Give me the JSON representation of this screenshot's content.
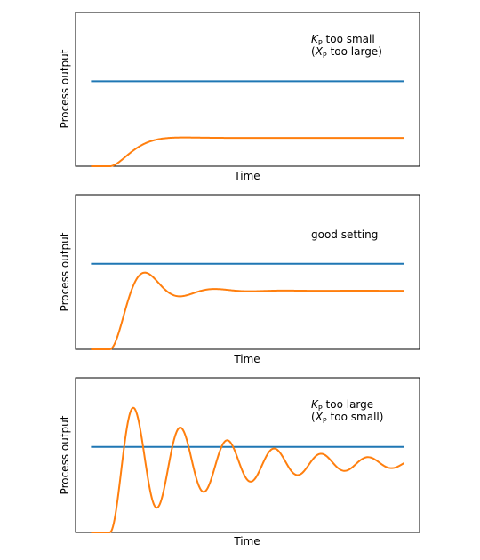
{
  "chart_data": [
    {
      "type": "line",
      "xlabel": "Time",
      "ylabel": "Process output",
      "annotation": {
        "k_line": "too small",
        "x_line": "too large)",
        "k_symbol": "K",
        "x_symbol": "X",
        "subscript": "P",
        "open_paren": "("
      },
      "xlim": [
        0,
        1
      ],
      "ylim": [
        0,
        1.9
      ],
      "setpoint": 1.05,
      "response": {
        "final": 0.35,
        "zeta": 0.8,
        "omega": 22,
        "delay": 0.06
      }
    },
    {
      "type": "line",
      "xlabel": "Time",
      "ylabel": "Process output",
      "annotation": {
        "text": "good setting"
      },
      "xlim": [
        0,
        1
      ],
      "ylim": [
        0,
        1.9
      ],
      "setpoint": 1.05,
      "response": {
        "final": 0.72,
        "zeta": 0.35,
        "omega": 30,
        "delay": 0.06
      }
    },
    {
      "type": "line",
      "xlabel": "Time",
      "ylabel": "Process output",
      "annotation": {
        "k_line": "too large",
        "x_line": "too small)",
        "k_symbol": "K",
        "x_symbol": "X",
        "subscript": "P",
        "open_paren": "("
      },
      "xlim": [
        0,
        1
      ],
      "ylim": [
        0,
        1.9
      ],
      "setpoint": 1.05,
      "response": {
        "final": 0.85,
        "zeta": 0.07,
        "omega": 42,
        "delay": 0.06
      }
    }
  ],
  "colors": {
    "setpoint": "#1f77b4",
    "response": "#ff7f0e",
    "axes": "#000000"
  }
}
